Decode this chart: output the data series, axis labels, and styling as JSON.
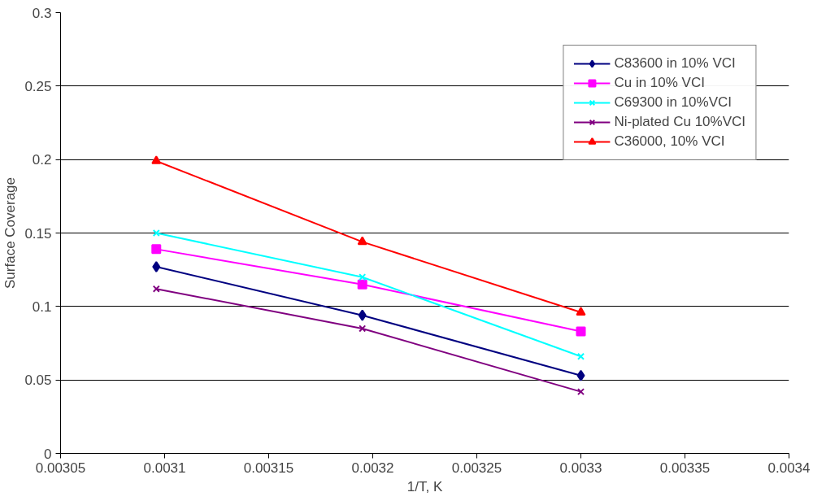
{
  "chart_data": {
    "type": "line",
    "xlabel": "1/T, K",
    "ylabel": "Surface Coverage",
    "x": [
      0.003096,
      0.003195,
      0.0033
    ],
    "series": [
      {
        "name": "C83600 in 10% VCI",
        "color": "#000080",
        "marker": "diamond",
        "values": [
          0.127,
          0.094,
          0.053
        ]
      },
      {
        "name": "Cu in 10% VCI",
        "color": "#ff00ff",
        "marker": "square",
        "values": [
          0.139,
          0.115,
          0.083
        ]
      },
      {
        "name": "C69300 in 10%VCI",
        "color": "#00ffff",
        "marker": "cross",
        "values": [
          0.15,
          0.12,
          0.066
        ]
      },
      {
        "name": "Ni-plated Cu 10%VCI",
        "color": "#800080",
        "marker": "cross",
        "values": [
          0.112,
          0.085,
          0.042
        ]
      },
      {
        "name": "C36000, 10% VCI",
        "color": "#ff0000",
        "marker": "triangle",
        "values": [
          0.199,
          0.144,
          0.096
        ]
      }
    ],
    "xlim": [
      0.00305,
      0.0034
    ],
    "xticks": [
      0.00305,
      0.0031,
      0.00315,
      0.0032,
      0.00325,
      0.0033,
      0.00335,
      0.0034
    ],
    "ylim": [
      0,
      0.3
    ],
    "yticks": [
      0,
      0.05,
      0.1,
      0.15,
      0.2,
      0.25,
      0.3
    ],
    "grid": "y",
    "legend": "top right",
    "line_style": "solid"
  }
}
